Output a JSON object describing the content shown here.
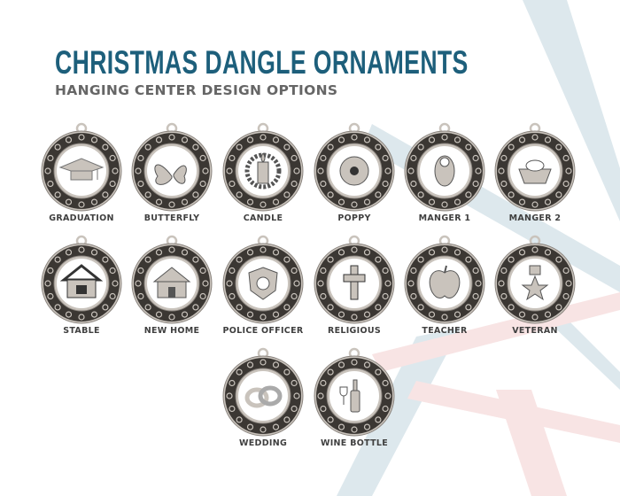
{
  "header": {
    "title": "CHRISTMAS DANGLE ORNAMENTS",
    "subtitle": "HANGING CENTER DESIGN OPTIONS"
  },
  "colors": {
    "title": "#1d5f7b",
    "subtitle": "#666666",
    "ornament_silver": "#c9c3bc",
    "ornament_dark": "#3b3733",
    "ray_blue": "#dbe7ec",
    "ray_pink": "#f7e3e3"
  },
  "ornaments": [
    {
      "label": "GRADUATION",
      "icon": "graduation-cap-icon"
    },
    {
      "label": "BUTTERFLY",
      "icon": "butterfly-icon"
    },
    {
      "label": "CANDLE",
      "icon": "candle-icon"
    },
    {
      "label": "POPPY",
      "icon": "poppy-icon"
    },
    {
      "label": "MANGER 1",
      "icon": "baby-in-manger-icon"
    },
    {
      "label": "MANGER 2",
      "icon": "manger-icon"
    },
    {
      "label": "STABLE",
      "icon": "stable-icon"
    },
    {
      "label": "NEW HOME",
      "icon": "house-icon"
    },
    {
      "label": "POLICE OFFICER",
      "icon": "police-badge-icon"
    },
    {
      "label": "RELIGIOUS",
      "icon": "cross-icon"
    },
    {
      "label": "TEACHER",
      "icon": "apple-icon"
    },
    {
      "label": "VETERAN",
      "icon": "star-medal-icon"
    },
    {
      "label": "WEDDING",
      "icon": "wedding-rings-icon"
    },
    {
      "label": "WINE BOTTLE",
      "icon": "wine-bottle-icon"
    }
  ]
}
